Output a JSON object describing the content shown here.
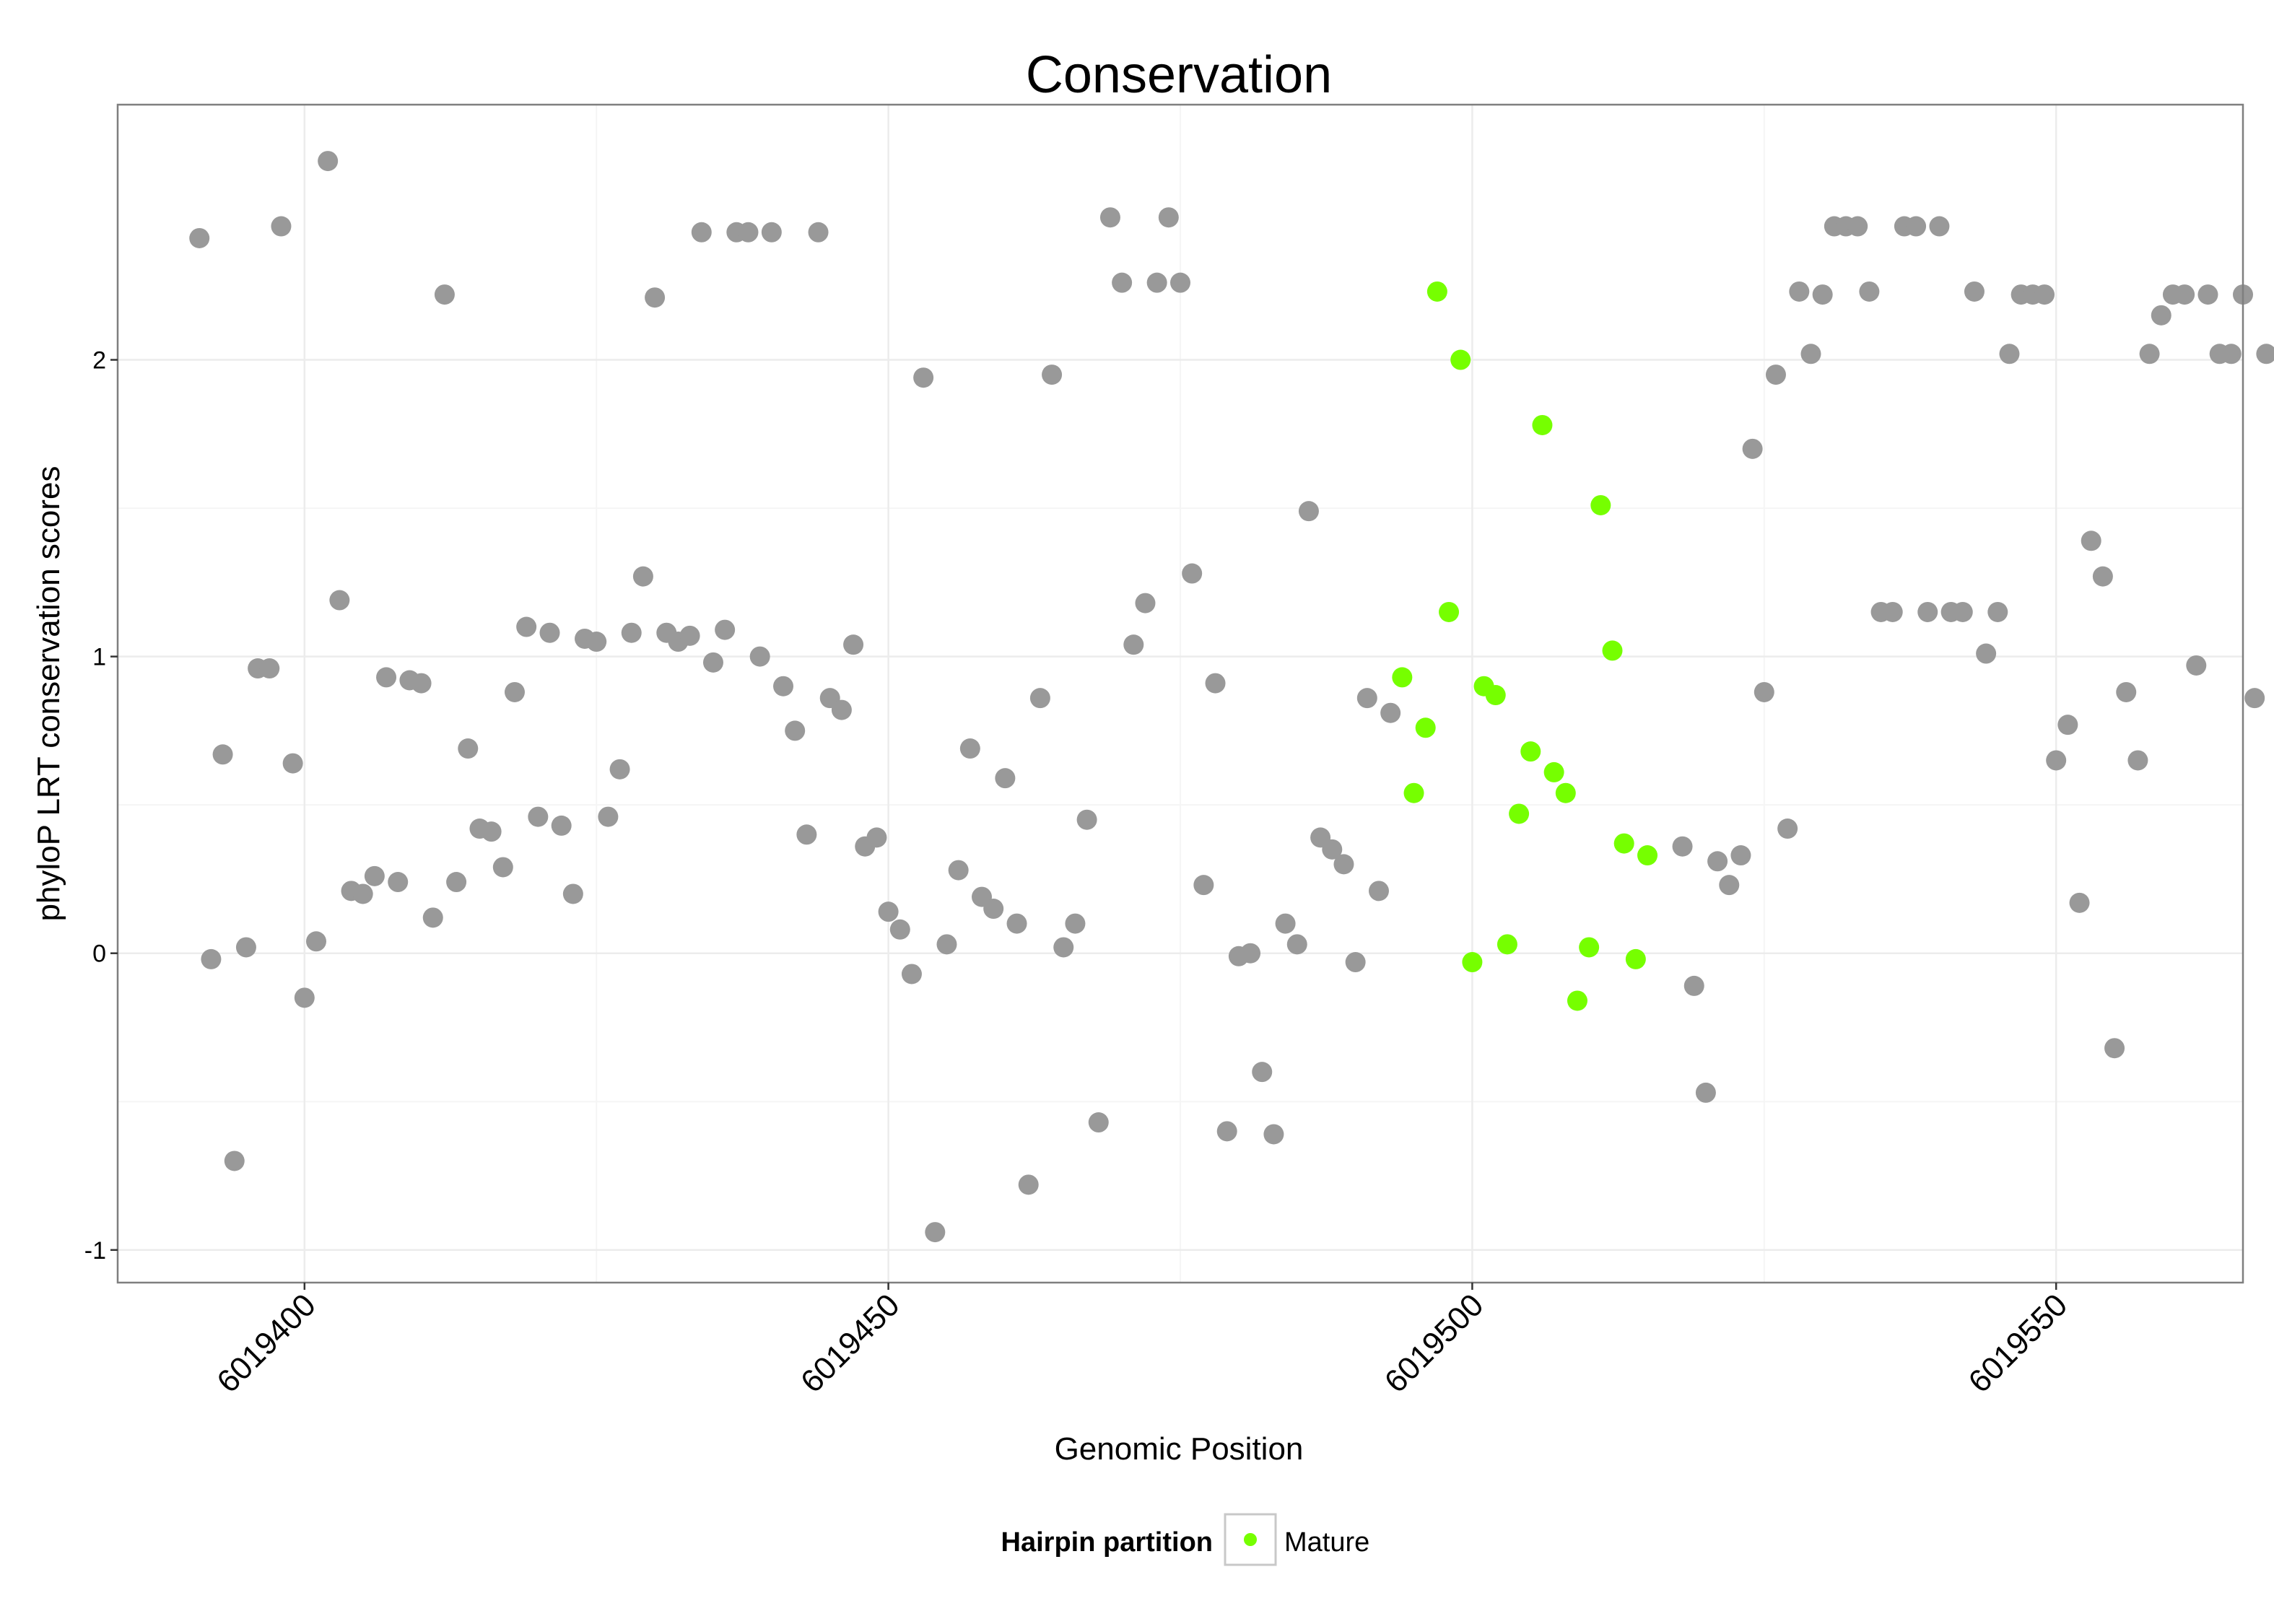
{
  "chart_data": {
    "type": "scatter",
    "title": "Conservation",
    "xlabel": "Genomic Position",
    "ylabel": "phyloP LRT conservation scores",
    "xlim": [
      6019384,
      6019566
    ],
    "ylim": [
      -1.11,
      2.86
    ],
    "x_ticks": [
      6019400,
      6019450,
      6019500,
      6019550
    ],
    "x_tick_labels": [
      "6019400",
      "6019450",
      "6019500",
      "6019550"
    ],
    "y_ticks": [
      -1,
      0,
      1,
      2
    ],
    "y_tick_labels": [
      "-1",
      "0",
      "1",
      "2"
    ],
    "grid": true,
    "legend": {
      "title": "Hairpin partition",
      "position": "bottom",
      "entries": [
        "Mature"
      ]
    },
    "colors": {
      "Mature": "#76ff00",
      "other": "#999999"
    },
    "series": [
      {
        "name": "",
        "color": "#999999",
        "points": [
          [
            6019391,
            2.41
          ],
          [
            6019392,
            -0.02
          ],
          [
            6019393,
            0.67
          ],
          [
            6019394,
            -0.7
          ],
          [
            6019395,
            0.02
          ],
          [
            6019396,
            0.96
          ],
          [
            6019397,
            0.96
          ],
          [
            6019398,
            2.45
          ],
          [
            6019399,
            0.64
          ],
          [
            6019400,
            -0.15
          ],
          [
            6019401,
            0.04
          ],
          [
            6019402,
            2.67
          ],
          [
            6019403,
            1.19
          ],
          [
            6019404,
            0.21
          ],
          [
            6019405,
            0.2
          ],
          [
            6019406,
            0.26
          ],
          [
            6019407,
            0.93
          ],
          [
            6019408,
            0.24
          ],
          [
            6019409,
            0.92
          ],
          [
            6019410,
            0.91
          ],
          [
            6019411,
            0.12
          ],
          [
            6019412,
            2.22
          ],
          [
            6019413,
            0.24
          ],
          [
            6019414,
            0.69
          ],
          [
            6019415,
            0.42
          ],
          [
            6019416,
            0.41
          ],
          [
            6019417,
            0.29
          ],
          [
            6019418,
            0.88
          ],
          [
            6019419,
            1.1
          ],
          [
            6019420,
            0.46
          ],
          [
            6019421,
            1.08
          ],
          [
            6019422,
            0.43
          ],
          [
            6019423,
            0.2
          ],
          [
            6019424,
            1.06
          ],
          [
            6019425,
            1.05
          ],
          [
            6019426,
            0.46
          ],
          [
            6019427,
            0.62
          ],
          [
            6019428,
            1.08
          ],
          [
            6019429,
            1.27
          ],
          [
            6019430,
            2.21
          ],
          [
            6019431,
            1.08
          ],
          [
            6019432,
            1.05
          ],
          [
            6019433,
            1.07
          ],
          [
            6019434,
            2.43
          ],
          [
            6019435,
            0.98
          ],
          [
            6019436,
            1.09
          ],
          [
            6019437,
            2.43
          ],
          [
            6019438,
            2.43
          ],
          [
            6019439,
            1.0
          ],
          [
            6019440,
            2.43
          ],
          [
            6019441,
            0.9
          ],
          [
            6019442,
            0.75
          ],
          [
            6019443,
            0.4
          ],
          [
            6019444,
            2.43
          ],
          [
            6019445,
            0.86
          ],
          [
            6019446,
            0.82
          ],
          [
            6019447,
            1.04
          ],
          [
            6019448,
            0.36
          ],
          [
            6019449,
            0.39
          ],
          [
            6019450,
            0.14
          ],
          [
            6019451,
            0.08
          ],
          [
            6019452,
            -0.07
          ],
          [
            6019453,
            1.94
          ],
          [
            6019454,
            -0.94
          ],
          [
            6019455,
            0.03
          ],
          [
            6019456,
            0.28
          ],
          [
            6019457,
            0.69
          ],
          [
            6019458,
            0.19
          ],
          [
            6019459,
            0.15
          ],
          [
            6019460,
            0.59
          ],
          [
            6019461,
            0.1
          ],
          [
            6019462,
            -0.78
          ],
          [
            6019463,
            0.86
          ],
          [
            6019464,
            1.95
          ],
          [
            6019465,
            0.02
          ],
          [
            6019466,
            0.1
          ],
          [
            6019467,
            0.45
          ],
          [
            6019468,
            -0.57
          ],
          [
            6019469,
            2.48
          ],
          [
            6019470,
            2.26
          ],
          [
            6019471,
            1.04
          ],
          [
            6019472,
            1.18
          ],
          [
            6019473,
            2.26
          ],
          [
            6019474,
            2.48
          ],
          [
            6019475,
            2.26
          ],
          [
            6019476,
            1.28
          ],
          [
            6019477,
            0.23
          ],
          [
            6019478,
            0.91
          ],
          [
            6019479,
            -0.6
          ],
          [
            6019480,
            -0.01
          ],
          [
            6019481,
            0.0
          ],
          [
            6019482,
            -0.4
          ],
          [
            6019483,
            -0.61
          ],
          [
            6019484,
            0.1
          ],
          [
            6019485,
            0.03
          ],
          [
            6019486,
            1.49
          ],
          [
            6019487,
            0.39
          ],
          [
            6019488,
            0.35
          ],
          [
            6019489,
            0.3
          ],
          [
            6019490,
            -0.03
          ],
          [
            6019491,
            0.86
          ],
          [
            6019492,
            0.21
          ],
          [
            6019493,
            0.81
          ],
          [
            6019518,
            0.36
          ],
          [
            6019519,
            -0.11
          ],
          [
            6019520,
            -0.47
          ],
          [
            6019521,
            0.31
          ],
          [
            6019522,
            0.23
          ],
          [
            6019523,
            0.33
          ],
          [
            6019524,
            1.7
          ],
          [
            6019525,
            0.88
          ],
          [
            6019526,
            1.95
          ],
          [
            6019527,
            0.42
          ],
          [
            6019528,
            2.23
          ],
          [
            6019529,
            2.02
          ],
          [
            6019530,
            2.22
          ],
          [
            6019531,
            2.45
          ],
          [
            6019532,
            2.45
          ],
          [
            6019533,
            2.45
          ],
          [
            6019534,
            2.23
          ],
          [
            6019535,
            1.15
          ],
          [
            6019536,
            1.15
          ],
          [
            6019537,
            2.45
          ],
          [
            6019538,
            2.45
          ],
          [
            6019539,
            1.15
          ],
          [
            6019540,
            2.45
          ],
          [
            6019541,
            1.15
          ],
          [
            6019542,
            1.15
          ],
          [
            6019543,
            2.23
          ],
          [
            6019544,
            1.01
          ],
          [
            6019545,
            1.15
          ],
          [
            6019546,
            2.02
          ],
          [
            6019547,
            2.22
          ],
          [
            6019548,
            2.22
          ],
          [
            6019549,
            2.22
          ],
          [
            6019550,
            0.65
          ],
          [
            6019551,
            0.77
          ],
          [
            6019552,
            0.17
          ],
          [
            6019553,
            1.39
          ],
          [
            6019554,
            1.27
          ],
          [
            6019555,
            -0.32
          ],
          [
            6019556,
            0.88
          ],
          [
            6019557,
            0.65
          ],
          [
            6019558,
            2.02
          ],
          [
            6019559,
            2.15
          ],
          [
            6019560,
            2.22
          ],
          [
            6019561,
            2.22
          ],
          [
            6019562,
            0.97
          ],
          [
            6019563,
            2.22
          ],
          [
            6019564,
            2.02
          ],
          [
            6019565,
            2.02
          ],
          [
            6019566,
            2.22
          ],
          [
            6019567,
            0.86
          ],
          [
            6019568,
            2.02
          ]
        ]
      },
      {
        "name": "Mature",
        "color": "#76ff00",
        "points": [
          [
            6019494,
            0.93
          ],
          [
            6019495,
            0.54
          ],
          [
            6019496,
            0.76
          ],
          [
            6019497,
            2.23
          ],
          [
            6019498,
            1.15
          ],
          [
            6019499,
            2.0
          ],
          [
            6019500,
            -0.03
          ],
          [
            6019501,
            0.9
          ],
          [
            6019502,
            0.87
          ],
          [
            6019503,
            0.03
          ],
          [
            6019504,
            0.47
          ],
          [
            6019505,
            0.68
          ],
          [
            6019506,
            1.78
          ],
          [
            6019507,
            0.61
          ],
          [
            6019508,
            0.54
          ],
          [
            6019509,
            -0.16
          ],
          [
            6019510,
            0.02
          ],
          [
            6019511,
            1.51
          ],
          [
            6019512,
            1.02
          ],
          [
            6019513,
            0.37
          ],
          [
            6019514,
            -0.02
          ],
          [
            6019515,
            0.33
          ]
        ]
      }
    ]
  }
}
